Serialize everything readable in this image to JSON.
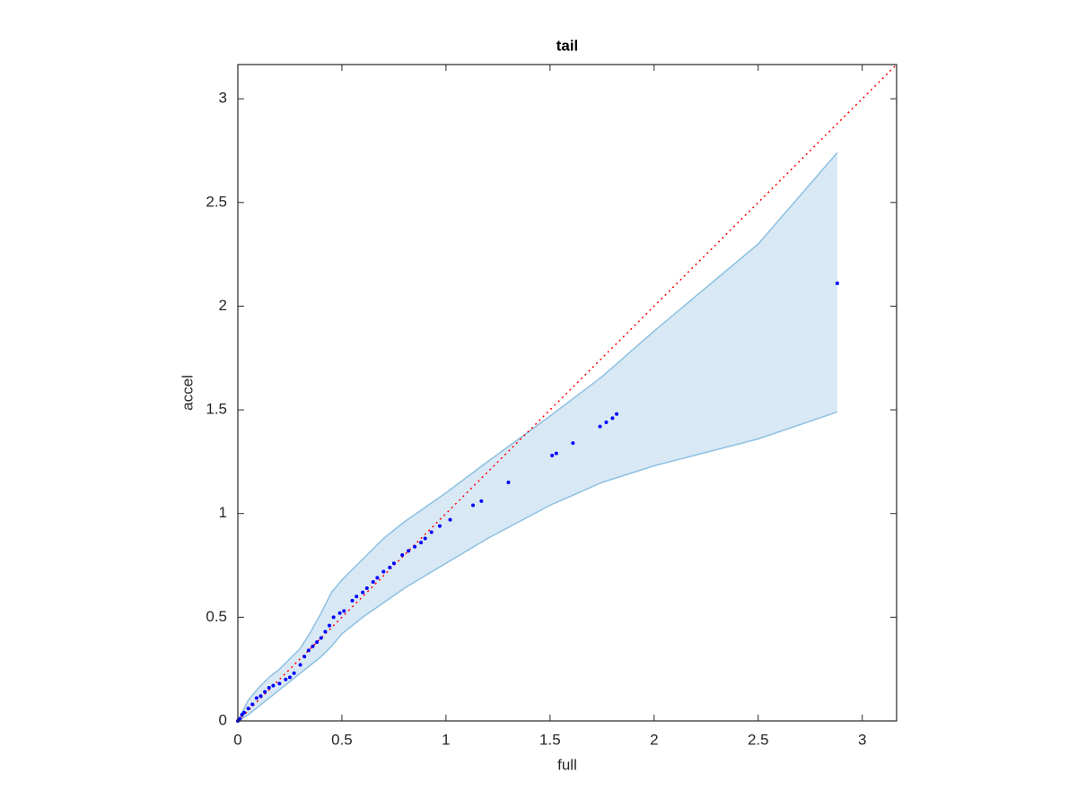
{
  "chart_data": {
    "type": "scatter",
    "title": "tail",
    "xlabel": "full",
    "ylabel": "accel",
    "xlim": [
      0,
      3.165
    ],
    "ylim": [
      0,
      3.165
    ],
    "xticks": [
      0,
      0.5,
      1,
      1.5,
      2,
      2.5,
      3
    ],
    "yticks": [
      0,
      0.5,
      1,
      1.5,
      2,
      2.5,
      3
    ],
    "box": true,
    "points": {
      "color": "#0000ff",
      "x": [
        0,
        0.01,
        0.02,
        0.03,
        0.05,
        0.07,
        0.09,
        0.11,
        0.13,
        0.15,
        0.17,
        0.2,
        0.23,
        0.25,
        0.27,
        0.3,
        0.32,
        0.34,
        0.36,
        0.38,
        0.4,
        0.42,
        0.44,
        0.46,
        0.49,
        0.51,
        0.55,
        0.57,
        0.6,
        0.62,
        0.65,
        0.67,
        0.7,
        0.73,
        0.75,
        0.79,
        0.82,
        0.85,
        0.88,
        0.9,
        0.93,
        0.97,
        1.02,
        1.13,
        1.17,
        1.3,
        1.51,
        1.53,
        1.61,
        1.74,
        1.77,
        1.8,
        1.82,
        2.88
      ],
      "y": [
        0,
        0.01,
        0.03,
        0.04,
        0.06,
        0.08,
        0.11,
        0.12,
        0.14,
        0.16,
        0.17,
        0.18,
        0.2,
        0.21,
        0.23,
        0.27,
        0.31,
        0.34,
        0.36,
        0.38,
        0.4,
        0.43,
        0.46,
        0.5,
        0.52,
        0.53,
        0.58,
        0.6,
        0.62,
        0.64,
        0.67,
        0.69,
        0.72,
        0.74,
        0.76,
        0.8,
        0.82,
        0.84,
        0.86,
        0.88,
        0.91,
        0.94,
        0.97,
        1.04,
        1.06,
        1.15,
        1.28,
        1.29,
        1.34,
        1.42,
        1.44,
        1.46,
        1.48,
        2.11
      ]
    },
    "band": {
      "color": "#8dc0e2",
      "fill": "#d8e8f4",
      "x": [
        0,
        0.05,
        0.1,
        0.15,
        0.2,
        0.25,
        0.3,
        0.35,
        0.4,
        0.45,
        0.5,
        0.6,
        0.7,
        0.8,
        1.0,
        1.2,
        1.5,
        1.75,
        2.0,
        2.5,
        2.88
      ],
      "upper": [
        0,
        0.1,
        0.16,
        0.21,
        0.25,
        0.3,
        0.35,
        0.43,
        0.52,
        0.62,
        0.68,
        0.78,
        0.88,
        0.96,
        1.1,
        1.25,
        1.47,
        1.66,
        1.88,
        2.3,
        2.74
      ],
      "lower": [
        0,
        0.03,
        0.07,
        0.11,
        0.15,
        0.19,
        0.23,
        0.27,
        0.31,
        0.36,
        0.42,
        0.5,
        0.57,
        0.64,
        0.76,
        0.88,
        1.04,
        1.15,
        1.23,
        1.36,
        1.49
      ]
    },
    "reference_line": {
      "color": "#ff0000",
      "style": "dotted",
      "x": [
        0,
        3.165
      ],
      "y": [
        0,
        3.165
      ]
    }
  }
}
